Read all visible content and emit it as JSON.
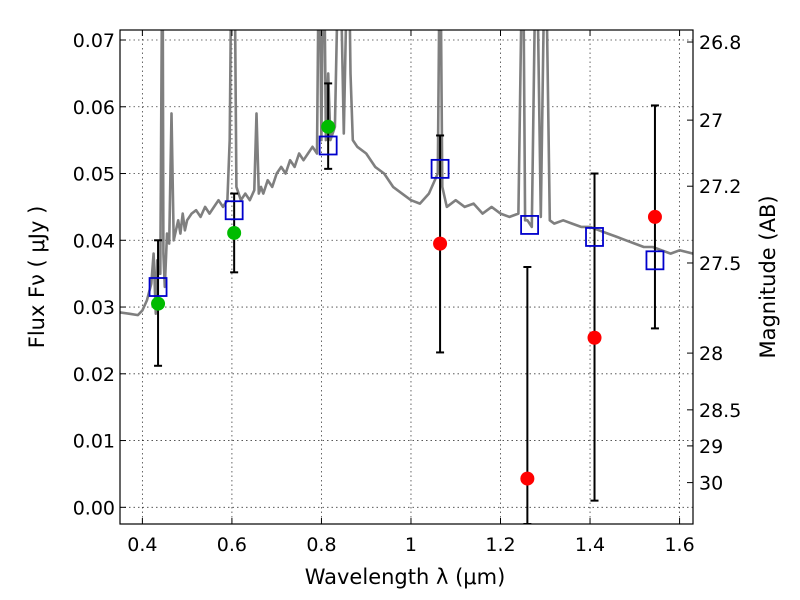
{
  "chart_data": {
    "type": "scatter",
    "title": "",
    "xlabel": "Wavelength  λ (μm)",
    "ylabel": "Flux  Fν ( μJy )",
    "y2label": "Magnitude (AB)",
    "xlim": [
      0.35,
      1.63
    ],
    "ylim": [
      -0.0025,
      0.0715
    ],
    "grid": true,
    "legend": "none",
    "x_ticks": [
      {
        "value": 0.4,
        "label": "0.4"
      },
      {
        "value": 0.6,
        "label": "0.6"
      },
      {
        "value": 0.8,
        "label": "0.8"
      },
      {
        "value": 1.0,
        "label": "1"
      },
      {
        "value": 1.2,
        "label": "1.2"
      },
      {
        "value": 1.4,
        "label": "1.4"
      },
      {
        "value": 1.6,
        "label": "1.6"
      }
    ],
    "y_ticks": [
      {
        "value": 0.0,
        "label": "0.00"
      },
      {
        "value": 0.01,
        "label": "0.01"
      },
      {
        "value": 0.02,
        "label": "0.02"
      },
      {
        "value": 0.03,
        "label": "0.03"
      },
      {
        "value": 0.04,
        "label": "0.04"
      },
      {
        "value": 0.05,
        "label": "0.05"
      },
      {
        "value": 0.06,
        "label": "0.06"
      },
      {
        "value": 0.07,
        "label": "0.07"
      }
    ],
    "y2_ticks": [
      {
        "flux": 0.0697,
        "label": "26.8"
      },
      {
        "flux": 0.058,
        "label": "27"
      },
      {
        "flux": 0.0481,
        "label": "27.2"
      },
      {
        "flux": 0.0366,
        "label": "27.5"
      },
      {
        "flux": 0.0231,
        "label": "28"
      },
      {
        "flux": 0.0146,
        "label": "28.5"
      },
      {
        "flux": 0.0092,
        "label": "29"
      },
      {
        "flux": 0.0037,
        "label": "30"
      }
    ],
    "colors": {
      "sed": "#7f7f7f",
      "model_points": "#0000cc",
      "green_points": "#00bb00",
      "red_points": "#ff0000",
      "errorbars": "#000000"
    },
    "series": [
      {
        "kind": "line",
        "x": [
          0.35,
          0.37,
          0.39,
          0.4,
          0.41,
          0.42,
          0.425,
          0.43,
          0.433,
          0.436,
          0.44,
          0.445,
          0.447,
          0.45,
          0.455,
          0.46,
          0.465,
          0.47,
          0.48,
          0.485,
          0.49,
          0.495,
          0.5,
          0.51,
          0.52,
          0.53,
          0.54,
          0.55,
          0.56,
          0.57,
          0.58,
          0.59,
          0.595,
          0.6,
          0.605,
          0.61,
          0.62,
          0.63,
          0.64,
          0.65,
          0.655,
          0.66,
          0.665,
          0.67,
          0.68,
          0.69,
          0.7,
          0.71,
          0.72,
          0.73,
          0.74,
          0.75,
          0.76,
          0.77,
          0.78,
          0.79,
          0.795,
          0.8,
          0.805,
          0.81,
          0.815,
          0.82,
          0.83,
          0.84,
          0.85,
          0.86,
          0.865,
          0.87,
          0.88,
          0.9,
          0.92,
          0.94,
          0.96,
          0.98,
          1.0,
          1.02,
          1.04,
          1.06,
          1.065,
          1.07,
          1.08,
          1.1,
          1.12,
          1.14,
          1.16,
          1.18,
          1.2,
          1.22,
          1.24,
          1.25,
          1.255,
          1.26,
          1.27,
          1.28,
          1.29,
          1.3,
          1.31,
          1.32,
          1.34,
          1.36,
          1.38,
          1.4,
          1.42,
          1.44,
          1.46,
          1.48,
          1.5,
          1.52,
          1.54,
          1.56,
          1.58,
          1.6,
          1.63
        ],
        "y": [
          0.0292,
          0.029,
          0.0288,
          0.0295,
          0.031,
          0.0335,
          0.038,
          0.029,
          0.037,
          0.035,
          0.035,
          0.09,
          0.038,
          0.033,
          0.041,
          0.0395,
          0.059,
          0.04,
          0.043,
          0.041,
          0.044,
          0.0415,
          0.043,
          0.044,
          0.0445,
          0.0435,
          0.045,
          0.044,
          0.045,
          0.046,
          0.045,
          0.046,
          0.055,
          0.09,
          0.09,
          0.048,
          0.046,
          0.047,
          0.046,
          0.0475,
          0.059,
          0.047,
          0.048,
          0.047,
          0.049,
          0.048,
          0.05,
          0.051,
          0.05,
          0.052,
          0.051,
          0.053,
          0.052,
          0.053,
          0.054,
          0.053,
          0.09,
          0.055,
          0.09,
          0.055,
          0.065,
          0.055,
          0.057,
          0.09,
          0.056,
          0.09,
          0.065,
          0.055,
          0.054,
          0.053,
          0.051,
          0.05,
          0.048,
          0.047,
          0.046,
          0.0455,
          0.047,
          0.05,
          0.09,
          0.048,
          0.045,
          0.046,
          0.045,
          0.0455,
          0.044,
          0.045,
          0.044,
          0.0435,
          0.044,
          0.09,
          0.043,
          0.043,
          0.042,
          0.09,
          0.0435,
          0.09,
          0.043,
          0.0425,
          0.043,
          0.0425,
          0.042,
          0.042,
          0.0415,
          0.041,
          0.0405,
          0.04,
          0.0395,
          0.039,
          0.039,
          0.0385,
          0.038,
          0.0385,
          0.038
        ]
      },
      {
        "kind": "points",
        "marker": "open-square",
        "x": [
          0.435,
          0.605,
          0.815,
          1.065,
          1.265,
          1.41,
          1.545
        ],
        "y": [
          0.033,
          0.0445,
          0.0542,
          0.0507,
          0.0423,
          0.0405,
          0.037
        ]
      },
      {
        "kind": "points",
        "marker": "filled-circle",
        "x": [
          0.435,
          0.605,
          0.815
        ],
        "y": [
          0.0305,
          0.0411,
          0.057
        ],
        "color": "green"
      },
      {
        "kind": "points",
        "marker": "filled-circle",
        "x": [
          1.065,
          1.26,
          1.41,
          1.545
        ],
        "y": [
          0.0395,
          0.0043,
          0.0254,
          0.0435
        ],
        "color": "red"
      },
      {
        "kind": "errorbars",
        "x": [
          0.435,
          0.605,
          0.815,
          1.065,
          1.26,
          1.41,
          1.545
        ],
        "low": [
          0.0212,
          0.0352,
          0.0507,
          0.0232,
          -0.0025,
          0.001,
          0.0268
        ],
        "high": [
          0.04,
          0.047,
          0.0635,
          0.0557,
          0.036,
          0.05,
          0.0602
        ]
      }
    ]
  }
}
